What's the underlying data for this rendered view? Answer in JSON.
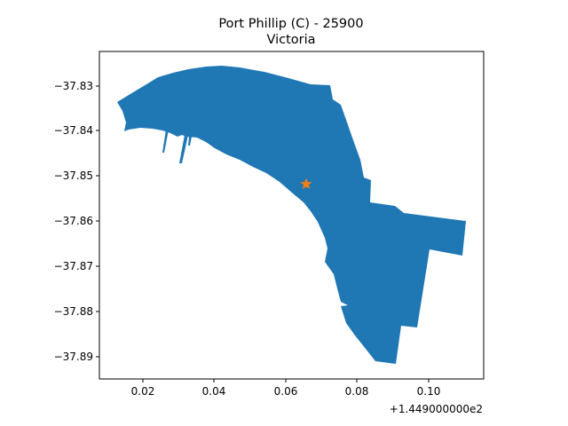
{
  "figure": {
    "title_line1": "Port Phillip (C) - 25900",
    "title_line2": "Victoria"
  },
  "axes": {
    "x_ticks": [
      "0.02",
      "0.04",
      "0.06",
      "0.08",
      "0.10"
    ],
    "x_offset": "+1.449000000e2",
    "y_ticks": [
      "−37.83",
      "−37.84",
      "−37.85",
      "−37.86",
      "−37.87",
      "−37.88",
      "−37.89"
    ]
  },
  "map": {
    "region_color": "#1f77b4",
    "marker_color": "#ff7f0e",
    "marker_icon": "star-icon",
    "marker_lon": 144.9658,
    "marker_lat": -37.8517
  }
}
